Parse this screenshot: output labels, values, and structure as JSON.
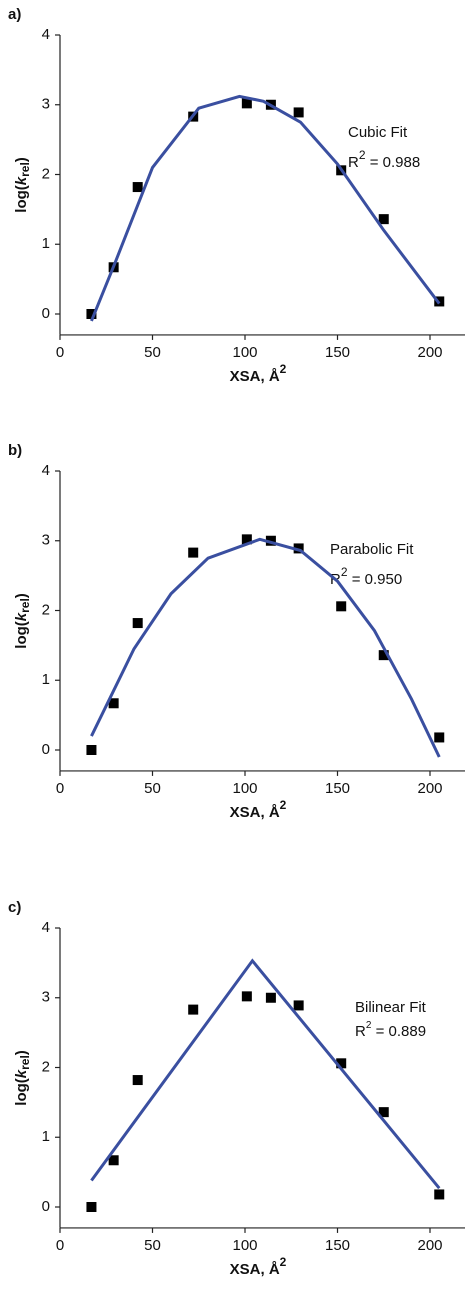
{
  "chart_data": [
    {
      "type": "scatter",
      "panel": "a)",
      "xlabel": "XSA, Å",
      "xlabel_sup": "2",
      "ylabel_parts": [
        "log(",
        "k",
        "rel",
        ")"
      ],
      "fit_name": "Cubic Fit",
      "r2_parts": [
        "R",
        "2",
        " = 0.988"
      ],
      "xlim": [
        0,
        220
      ],
      "ylim": [
        -0.3,
        4
      ],
      "xticks": [
        0,
        50,
        100,
        150,
        200
      ],
      "yticks": [
        0,
        1,
        2,
        3,
        4
      ],
      "points": {
        "color": "#000000",
        "x": [
          17,
          29,
          42,
          72,
          101,
          114,
          129,
          152,
          175,
          205
        ],
        "values": [
          0,
          0.67,
          1.82,
          2.83,
          3.02,
          3.0,
          2.89,
          2.06,
          1.36,
          0.18
        ]
      },
      "fit": {
        "color": "#3a4fa0",
        "x": [
          17,
          30,
          50,
          75,
          97,
          110,
          130,
          150,
          175,
          205
        ],
        "values": [
          -0.1,
          0.75,
          2.1,
          2.95,
          3.12,
          3.05,
          2.75,
          2.15,
          1.2,
          0.15
        ]
      }
    },
    {
      "type": "scatter",
      "panel": "b)",
      "xlabel": "XSA, Å",
      "xlabel_sup": "2",
      "ylabel_parts": [
        "log(",
        "k",
        "rel",
        ")"
      ],
      "fit_name": "Parabolic Fit",
      "r2_parts": [
        "R",
        "2",
        " = 0.950"
      ],
      "xlim": [
        0,
        220
      ],
      "ylim": [
        -0.3,
        4
      ],
      "xticks": [
        0,
        50,
        100,
        150,
        200
      ],
      "yticks": [
        0,
        1,
        2,
        3,
        4
      ],
      "points": {
        "color": "#000000",
        "x": [
          17,
          29,
          42,
          72,
          101,
          114,
          129,
          152,
          175,
          205
        ],
        "values": [
          0,
          0.67,
          1.82,
          2.83,
          3.02,
          3.0,
          2.89,
          2.06,
          1.36,
          0.18
        ]
      },
      "fit": {
        "color": "#3a4fa0",
        "x": [
          17,
          40,
          60,
          80,
          108,
          130,
          150,
          170,
          190,
          205
        ],
        "values": [
          0.2,
          1.45,
          2.24,
          2.75,
          3.02,
          2.86,
          2.42,
          1.71,
          0.73,
          -0.1
        ]
      }
    },
    {
      "type": "scatter",
      "panel": "c)",
      "xlabel": "XSA, Å",
      "xlabel_sup": "2",
      "ylabel_parts": [
        "log(",
        "k",
        "rel",
        ")"
      ],
      "fit_name": "Bilinear Fit",
      "r2_parts": [
        "R",
        "2",
        " = 0.889"
      ],
      "xlim": [
        0,
        220
      ],
      "ylim": [
        -0.3,
        4
      ],
      "xticks": [
        0,
        50,
        100,
        150,
        200
      ],
      "yticks": [
        0,
        1,
        2,
        3,
        4
      ],
      "points": {
        "color": "#000000",
        "x": [
          17,
          29,
          42,
          72,
          101,
          114,
          129,
          152,
          175,
          205
        ],
        "values": [
          0,
          0.67,
          1.82,
          2.83,
          3.02,
          3.0,
          2.89,
          2.06,
          1.36,
          0.18
        ]
      },
      "fit": {
        "color": "#3a4fa0",
        "x": [
          17,
          104,
          205
        ],
        "values": [
          0.38,
          3.53,
          0.27
        ]
      }
    }
  ]
}
